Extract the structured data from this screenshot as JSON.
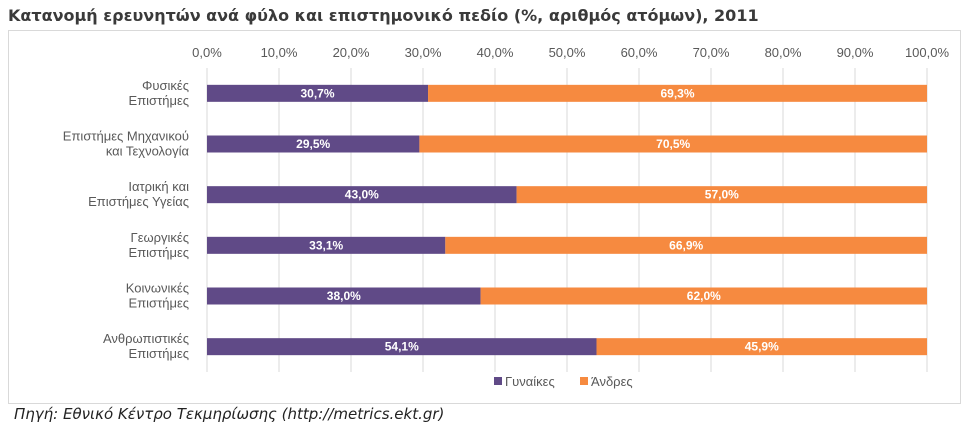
{
  "title": "Κατανομή ερευνητών ανά φύλο και επιστημονικό πεδίο (%, αριθμός ατόμων), 2011",
  "source": "Πηγή: Εθνικό Κέντρο Τεκμηρίωσης (http://metrics.ekt.gr)",
  "chart_data": {
    "type": "bar",
    "orientation": "horizontal",
    "stacked": true,
    "title": "Κατανομή ερευνητών ανά φύλο και επιστημονικό πεδίο (%, αριθμός ατόμων), 2011",
    "categories": [
      [
        "Φυσικές",
        "Επιστήμες"
      ],
      [
        "Επιστήμες Μηχανικού",
        "και Τεχνολογία"
      ],
      [
        "Ιατρική και",
        "Επιστήμες Υγείας"
      ],
      [
        "Γεωργικές",
        "Επιστήμες"
      ],
      [
        "Κοινωνικές",
        "Επιστήμες"
      ],
      [
        "Ανθρωπιστικές",
        "Επιστήμες"
      ]
    ],
    "series": [
      {
        "name": "Γυναίκες",
        "color": "#604a87",
        "values": [
          30.7,
          29.5,
          43.0,
          33.1,
          38.0,
          54.1
        ],
        "labels": [
          "30,7%",
          "29,5%",
          "43,0%",
          "33,1%",
          "38,0%",
          "54,1%"
        ]
      },
      {
        "name": "Άνδρες",
        "color": "#f68a40",
        "values": [
          69.3,
          70.5,
          57.0,
          66.9,
          62.0,
          45.9
        ],
        "labels": [
          "69,3%",
          "70,5%",
          "57,0%",
          "66,9%",
          "62,0%",
          "45,9%"
        ]
      }
    ],
    "xlim": [
      0,
      100
    ],
    "xticks": [
      0,
      10,
      20,
      30,
      40,
      50,
      60,
      70,
      80,
      90,
      100
    ],
    "xtick_labels": [
      "0,0%",
      "10,0%",
      "20,0%",
      "30,0%",
      "40,0%",
      "50,0%",
      "60,0%",
      "70,0%",
      "80,0%",
      "90,0%",
      "100,0%"
    ],
    "xaxis_position": "top",
    "grid": true,
    "grid_color": "#d9d9d9",
    "legend_position": "bottom"
  }
}
